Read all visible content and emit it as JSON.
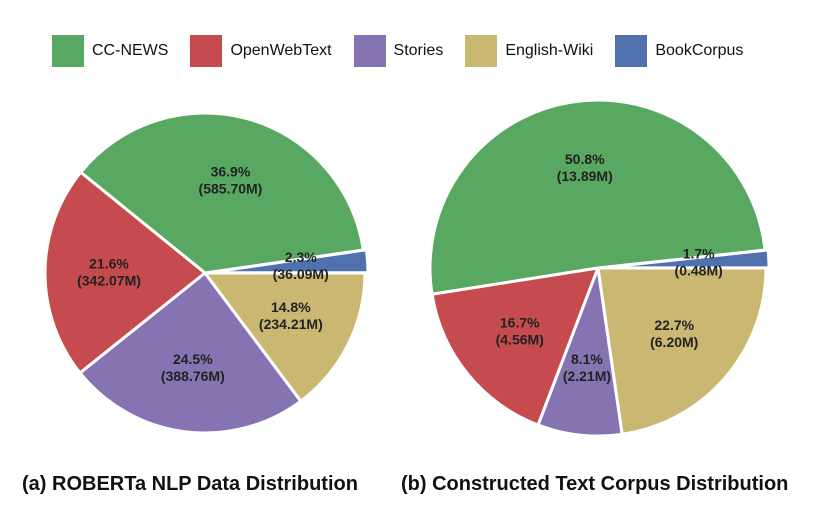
{
  "colors": {
    "CC-NEWS": "#59a862",
    "OpenWebText": "#c64b4f",
    "Stories": "#8673b2",
    "English-Wiki": "#cab872",
    "BookCorpus": "#4f72af"
  },
  "legend": [
    "CC-NEWS",
    "OpenWebText",
    "Stories",
    "English-Wiki",
    "BookCorpus"
  ],
  "chart_data": [
    {
      "type": "pie",
      "caption": "(a) ROBERTa NLP Data Distribution",
      "slices": [
        {
          "name": "BookCorpus",
          "percent": 2.3,
          "value": "36.09M"
        },
        {
          "name": "CC-NEWS",
          "percent": 36.9,
          "value": "585.70M"
        },
        {
          "name": "OpenWebText",
          "percent": 21.6,
          "value": "342.07M"
        },
        {
          "name": "Stories",
          "percent": 24.5,
          "value": "388.76M"
        },
        {
          "name": "English-Wiki",
          "percent": 14.8,
          "value": "234.21M"
        }
      ]
    },
    {
      "type": "pie",
      "caption": "(b) Constructed Text Corpus Distribution",
      "slices": [
        {
          "name": "BookCorpus",
          "percent": 1.7,
          "value": "0.48M"
        },
        {
          "name": "CC-NEWS",
          "percent": 50.8,
          "value": "13.89M"
        },
        {
          "name": "OpenWebText",
          "percent": 16.7,
          "value": "4.56M"
        },
        {
          "name": "Stories",
          "percent": 8.1,
          "value": "2.21M"
        },
        {
          "name": "English-Wiki",
          "percent": 22.7,
          "value": "6.20M"
        }
      ]
    }
  ]
}
